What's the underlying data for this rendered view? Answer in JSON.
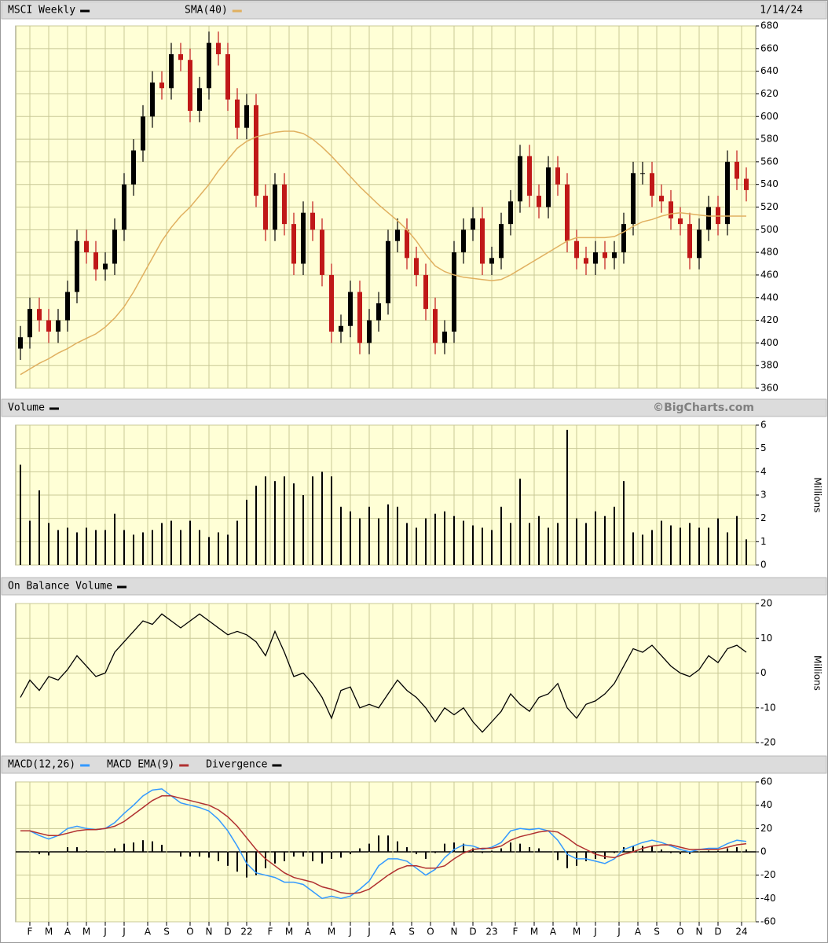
{
  "chart_data": [
    {
      "type": "candlestick",
      "title": "MSCI Weekly",
      "date": "1/14/24",
      "x": [
        0,
        2,
        4,
        6,
        8,
        10,
        12,
        14,
        16,
        18,
        20,
        22,
        24,
        26,
        28,
        30,
        32,
        34,
        36,
        38,
        40,
        42,
        44,
        46,
        48,
        50,
        52,
        54,
        56,
        58,
        60,
        62,
        64,
        66,
        68,
        70,
        72,
        74,
        76,
        78,
        80,
        82,
        84,
        86,
        88,
        90,
        92,
        94,
        96,
        98,
        100,
        102,
        104,
        106,
        108,
        110,
        112,
        114,
        116,
        118,
        120,
        122,
        124,
        126,
        128,
        130,
        132,
        134,
        136,
        138,
        140,
        142,
        144,
        146,
        148,
        150,
        152,
        154
      ],
      "open": [
        395,
        405,
        430,
        420,
        410,
        420,
        445,
        490,
        480,
        465,
        470,
        500,
        540,
        570,
        600,
        630,
        625,
        655,
        650,
        605,
        625,
        665,
        655,
        615,
        590,
        610,
        530,
        500,
        540,
        505,
        470,
        515,
        500,
        460,
        410,
        415,
        445,
        400,
        420,
        435,
        490,
        500,
        475,
        460,
        430,
        400,
        410,
        480,
        500,
        510,
        470,
        475,
        505,
        525,
        565,
        530,
        520,
        555,
        540,
        490,
        475,
        470,
        480,
        475,
        480,
        505,
        550,
        550,
        530,
        525,
        510,
        505,
        475,
        500,
        520,
        505,
        560,
        545
      ],
      "high": [
        415,
        440,
        440,
        430,
        430,
        455,
        500,
        500,
        490,
        480,
        510,
        550,
        580,
        610,
        640,
        640,
        665,
        665,
        660,
        635,
        675,
        675,
        665,
        625,
        620,
        620,
        540,
        550,
        550,
        515,
        525,
        525,
        510,
        470,
        425,
        455,
        455,
        430,
        445,
        500,
        510,
        510,
        485,
        470,
        440,
        420,
        490,
        510,
        520,
        520,
        485,
        515,
        535,
        575,
        575,
        540,
        565,
        565,
        550,
        500,
        485,
        490,
        490,
        490,
        515,
        560,
        560,
        560,
        540,
        535,
        520,
        515,
        510,
        530,
        530,
        570,
        570,
        555
      ],
      "low": [
        385,
        395,
        410,
        400,
        400,
        410,
        435,
        470,
        455,
        455,
        460,
        490,
        530,
        560,
        590,
        615,
        615,
        640,
        595,
        595,
        615,
        645,
        605,
        580,
        580,
        520,
        490,
        490,
        495,
        460,
        460,
        490,
        450,
        400,
        400,
        405,
        390,
        390,
        410,
        425,
        480,
        465,
        450,
        420,
        390,
        390,
        400,
        470,
        490,
        460,
        460,
        465,
        495,
        515,
        520,
        510,
        510,
        530,
        480,
        465,
        460,
        460,
        465,
        465,
        470,
        495,
        540,
        520,
        515,
        500,
        495,
        465,
        465,
        490,
        495,
        495,
        535,
        525
      ],
      "close": [
        405,
        430,
        420,
        410,
        420,
        445,
        490,
        480,
        465,
        470,
        500,
        540,
        570,
        600,
        630,
        625,
        655,
        650,
        605,
        625,
        665,
        655,
        615,
        590,
        610,
        530,
        500,
        540,
        505,
        470,
        515,
        500,
        460,
        410,
        415,
        445,
        400,
        420,
        435,
        490,
        500,
        475,
        460,
        430,
        400,
        410,
        480,
        500,
        510,
        470,
        475,
        505,
        525,
        565,
        530,
        520,
        555,
        540,
        490,
        475,
        470,
        480,
        475,
        480,
        505,
        550,
        550,
        530,
        525,
        510,
        505,
        475,
        500,
        520,
        505,
        560,
        545,
        535
      ],
      "up_color": "#000000",
      "down_color": "#c01818",
      "series": [
        {
          "name": "SMA(40)",
          "color": "#e0b060",
          "values": [
            372,
            377,
            382,
            386,
            391,
            395,
            400,
            404,
            408,
            414,
            422,
            432,
            445,
            460,
            475,
            490,
            502,
            512,
            520,
            530,
            540,
            552,
            562,
            572,
            578,
            582,
            584,
            586,
            587,
            587,
            585,
            580,
            573,
            565,
            556,
            547,
            538,
            530,
            522,
            515,
            508,
            500,
            490,
            478,
            468,
            463,
            460,
            458,
            457,
            456,
            455,
            456,
            460,
            465,
            470,
            475,
            480,
            485,
            490,
            493,
            493,
            493,
            493,
            494,
            498,
            503,
            507,
            509,
            512,
            514,
            515,
            514,
            513,
            512,
            512,
            512,
            512,
            512
          ]
        }
      ],
      "xlim": [
        -1,
        156
      ],
      "ylim": [
        360,
        680
      ],
      "yticks": [
        360,
        380,
        400,
        420,
        440,
        460,
        480,
        500,
        520,
        540,
        560,
        580,
        600,
        620,
        640,
        660,
        680
      ],
      "grid": true
    },
    {
      "type": "bar",
      "title": "Volume",
      "credit": "©BigCharts.com",
      "ylabel": "Millions",
      "color": "#000000",
      "values": [
        4.3,
        1.9,
        3.2,
        1.8,
        1.5,
        1.6,
        1.4,
        1.6,
        1.5,
        1.5,
        2.2,
        1.5,
        1.3,
        1.4,
        1.5,
        1.8,
        1.9,
        1.5,
        1.9,
        1.5,
        1.2,
        1.4,
        1.3,
        1.9,
        2.8,
        3.4,
        3.8,
        3.6,
        3.8,
        3.5,
        3.0,
        3.8,
        4.0,
        3.8,
        2.5,
        2.3,
        2.0,
        2.5,
        2.0,
        2.6,
        2.5,
        1.8,
        1.6,
        2.0,
        2.2,
        2.3,
        2.1,
        1.9,
        1.7,
        1.6,
        1.5,
        2.5,
        1.8,
        3.7,
        1.8,
        2.1,
        1.6,
        1.8,
        5.8,
        2.0,
        1.8,
        2.3,
        2.1,
        2.5,
        3.6,
        1.4,
        1.3,
        1.5,
        1.9,
        1.7,
        1.6,
        1.8,
        1.6,
        1.6,
        2.0,
        1.4,
        2.1,
        1.1
      ],
      "ylim": [
        0,
        6
      ],
      "yticks": [
        0,
        1,
        2,
        3,
        4,
        5,
        6
      ],
      "grid": true
    },
    {
      "type": "line",
      "title": "On Balance Volume",
      "ylabel": "Millions",
      "color": "#000000",
      "values": [
        -7,
        -2,
        -5,
        -1,
        -2,
        1,
        5,
        2,
        -1,
        0,
        6,
        9,
        12,
        15,
        14,
        17,
        15,
        13,
        15,
        17,
        15,
        13,
        11,
        12,
        11,
        9,
        5,
        12,
        6,
        -1,
        0,
        -3,
        -7,
        -13,
        -5,
        -4,
        -10,
        -9,
        -10,
        -6,
        -2,
        -5,
        -7,
        -10,
        -14,
        -10,
        -12,
        -10,
        -14,
        -17,
        -14,
        -11,
        -6,
        -9,
        -11,
        -7,
        -6,
        -3,
        -10,
        -13,
        -9,
        -8,
        -6,
        -3,
        2,
        7,
        6,
        8,
        5,
        2,
        0,
        -1,
        1,
        5,
        3,
        7,
        8,
        6
      ],
      "ylim": [
        -20,
        20
      ],
      "yticks": [
        -20,
        -10,
        0,
        10,
        20
      ],
      "grid": true
    },
    {
      "type": "macd",
      "series": [
        {
          "name": "MACD(12,26)",
          "color": "#3399ff",
          "values": [
            18,
            18,
            14,
            11,
            14,
            20,
            22,
            20,
            19,
            20,
            25,
            33,
            40,
            48,
            53,
            54,
            48,
            42,
            40,
            38,
            35,
            28,
            18,
            5,
            -10,
            -18,
            -20,
            -22,
            -26,
            -26,
            -28,
            -34,
            -40,
            -38,
            -40,
            -38,
            -32,
            -25,
            -12,
            -6,
            -6,
            -8,
            -14,
            -20,
            -15,
            -5,
            2,
            6,
            5,
            2,
            4,
            8,
            18,
            20,
            19,
            20,
            18,
            10,
            -2,
            -6,
            -6,
            -8,
            -10,
            -6,
            2,
            5,
            8,
            10,
            8,
            5,
            2,
            0,
            2,
            3,
            3,
            7,
            10,
            9
          ]
        },
        {
          "name": "MACD EMA(9)",
          "color": "#b03030",
          "values": [
            18,
            18,
            16,
            14,
            14,
            16,
            18,
            19,
            19,
            20,
            22,
            26,
            32,
            38,
            44,
            48,
            48,
            46,
            44,
            42,
            40,
            36,
            30,
            22,
            12,
            2,
            -6,
            -12,
            -18,
            -22,
            -24,
            -26,
            -30,
            -32,
            -35,
            -36,
            -35,
            -32,
            -26,
            -20,
            -15,
            -12,
            -12,
            -14,
            -14,
            -12,
            -6,
            -1,
            2,
            3,
            3,
            5,
            10,
            13,
            15,
            17,
            18,
            17,
            12,
            6,
            2,
            -2,
            -4,
            -5,
            -2,
            0,
            3,
            5,
            6,
            6,
            4,
            2,
            2,
            2,
            2,
            4,
            6,
            7
          ]
        },
        {
          "name": "Divergence",
          "color": "#000000",
          "style": "bar",
          "values": [
            0,
            0,
            -2,
            -3,
            0,
            4,
            4,
            1,
            0,
            0,
            3,
            7,
            8,
            10,
            9,
            6,
            0,
            -4,
            -4,
            -4,
            -5,
            -8,
            -12,
            -17,
            -22,
            -20,
            -14,
            -10,
            -8,
            -4,
            -4,
            -8,
            -10,
            -6,
            -5,
            -2,
            3,
            7,
            14,
            14,
            9,
            4,
            -2,
            -6,
            -1,
            7,
            8,
            7,
            3,
            -1,
            1,
            3,
            8,
            7,
            4,
            3,
            0,
            -7,
            -14,
            -12,
            -8,
            -6,
            -6,
            -1,
            4,
            5,
            5,
            5,
            2,
            -1,
            -2,
            -2,
            0,
            1,
            1,
            3,
            4,
            2
          ]
        }
      ],
      "ylim": [
        -60,
        60
      ],
      "yticks": [
        -60,
        -40,
        -20,
        0,
        20,
        40,
        60
      ],
      "grid": true,
      "xticks": [
        {
          "value": 2,
          "label": "F"
        },
        {
          "value": 6,
          "label": "M"
        },
        {
          "value": 10,
          "label": "A"
        },
        {
          "value": 14,
          "label": "M"
        },
        {
          "value": 18,
          "label": "J"
        },
        {
          "value": 22,
          "label": "J"
        },
        {
          "value": 27,
          "label": "A"
        },
        {
          "value": 31,
          "label": "S"
        },
        {
          "value": 36,
          "label": "O"
        },
        {
          "value": 40,
          "label": "N"
        },
        {
          "value": 44,
          "label": "D"
        },
        {
          "value": 48,
          "label": "22"
        },
        {
          "value": 53,
          "label": "F"
        },
        {
          "value": 57,
          "label": "M"
        },
        {
          "value": 61,
          "label": "A"
        },
        {
          "value": 66,
          "label": "M"
        },
        {
          "value": 70,
          "label": "J"
        },
        {
          "value": 74,
          "label": "J"
        },
        {
          "value": 79,
          "label": "A"
        },
        {
          "value": 83,
          "label": "S"
        },
        {
          "value": 87,
          "label": "O"
        },
        {
          "value": 92,
          "label": "N"
        },
        {
          "value": 96,
          "label": "D"
        },
        {
          "value": 100,
          "label": "23"
        },
        {
          "value": 105,
          "label": "F"
        },
        {
          "value": 109,
          "label": "M"
        },
        {
          "value": 113,
          "label": "A"
        },
        {
          "value": 118,
          "label": "M"
        },
        {
          "value": 122,
          "label": "J"
        },
        {
          "value": 127,
          "label": "J"
        },
        {
          "value": 131,
          "label": "A"
        },
        {
          "value": 135,
          "label": "S"
        },
        {
          "value": 140,
          "label": "O"
        },
        {
          "value": 144,
          "label": "N"
        },
        {
          "value": 148,
          "label": "D"
        },
        {
          "value": 153,
          "label": "24"
        }
      ]
    }
  ]
}
